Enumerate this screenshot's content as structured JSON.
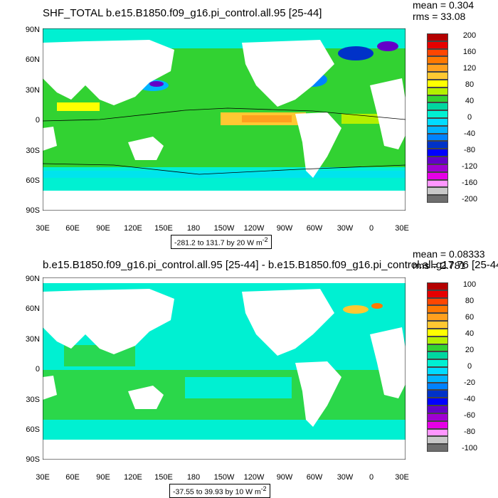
{
  "panels": [
    {
      "title": "SHF_TOTAL b.e15.B1850.f09_g16.pi_control.all.95 [25-44]",
      "mean": "mean = 0.304",
      "rms": "rms = 33.08",
      "range_label": "-281.2 to 131.7 by 20  W m",
      "unit_exp": "-2",
      "colorbar": {
        "labels": [
          "200",
          "160",
          "120",
          "80",
          "40",
          "0",
          "-40",
          "-80",
          "-120",
          "-160",
          "-200"
        ],
        "colors": [
          "#b40000",
          "#e60000",
          "#ff4600",
          "#ff7800",
          "#ffa01e",
          "#ffc832",
          "#ffff00",
          "#b4f000",
          "#32d232",
          "#00d7a0",
          "#00f0d2",
          "#00dcff",
          "#00b4ff",
          "#0082ff",
          "#0032c8",
          "#0000ff",
          "#6400c8",
          "#a000d2",
          "#e600e6",
          "#ff96ff",
          "#c8c8c8",
          "#6e6e6e"
        ]
      }
    },
    {
      "title": "b.e15.B1850.f09_g16.pi_control.all.95 [25-44] - b.e15.B1850.f09_g16.pi_control.all.g17.76 [25-44]",
      "mean": "mean = 0.08333",
      "rms": "rms = 2.781",
      "range_label": "-37.55 to 39.93 by 10  W m",
      "unit_exp": "-2",
      "colorbar": {
        "labels": [
          "100",
          "80",
          "60",
          "40",
          "20",
          "0",
          "-20",
          "-40",
          "-60",
          "-80",
          "-100"
        ],
        "colors": [
          "#b40000",
          "#e60000",
          "#ff4600",
          "#ff7800",
          "#ffa01e",
          "#ffc832",
          "#ffff00",
          "#b4f000",
          "#32d232",
          "#00d7a0",
          "#00f0d2",
          "#00dcff",
          "#00b4ff",
          "#0082ff",
          "#0032c8",
          "#0000ff",
          "#6400c8",
          "#a000d2",
          "#e600e6",
          "#ff96ff",
          "#c8c8c8",
          "#6e6e6e"
        ]
      }
    }
  ],
  "axes": {
    "lat_labels": [
      "90N",
      "60N",
      "30N",
      "0",
      "30S",
      "60S",
      "90S"
    ],
    "lon_labels": [
      "30E",
      "60E",
      "90E",
      "120E",
      "150E",
      "180",
      "150W",
      "120W",
      "90W",
      "60W",
      "30W",
      "0",
      "30E"
    ]
  },
  "colors": {
    "ocean_main": "#00f0d2",
    "ocean_alt": "#32d232",
    "land": "#ffffff"
  }
}
